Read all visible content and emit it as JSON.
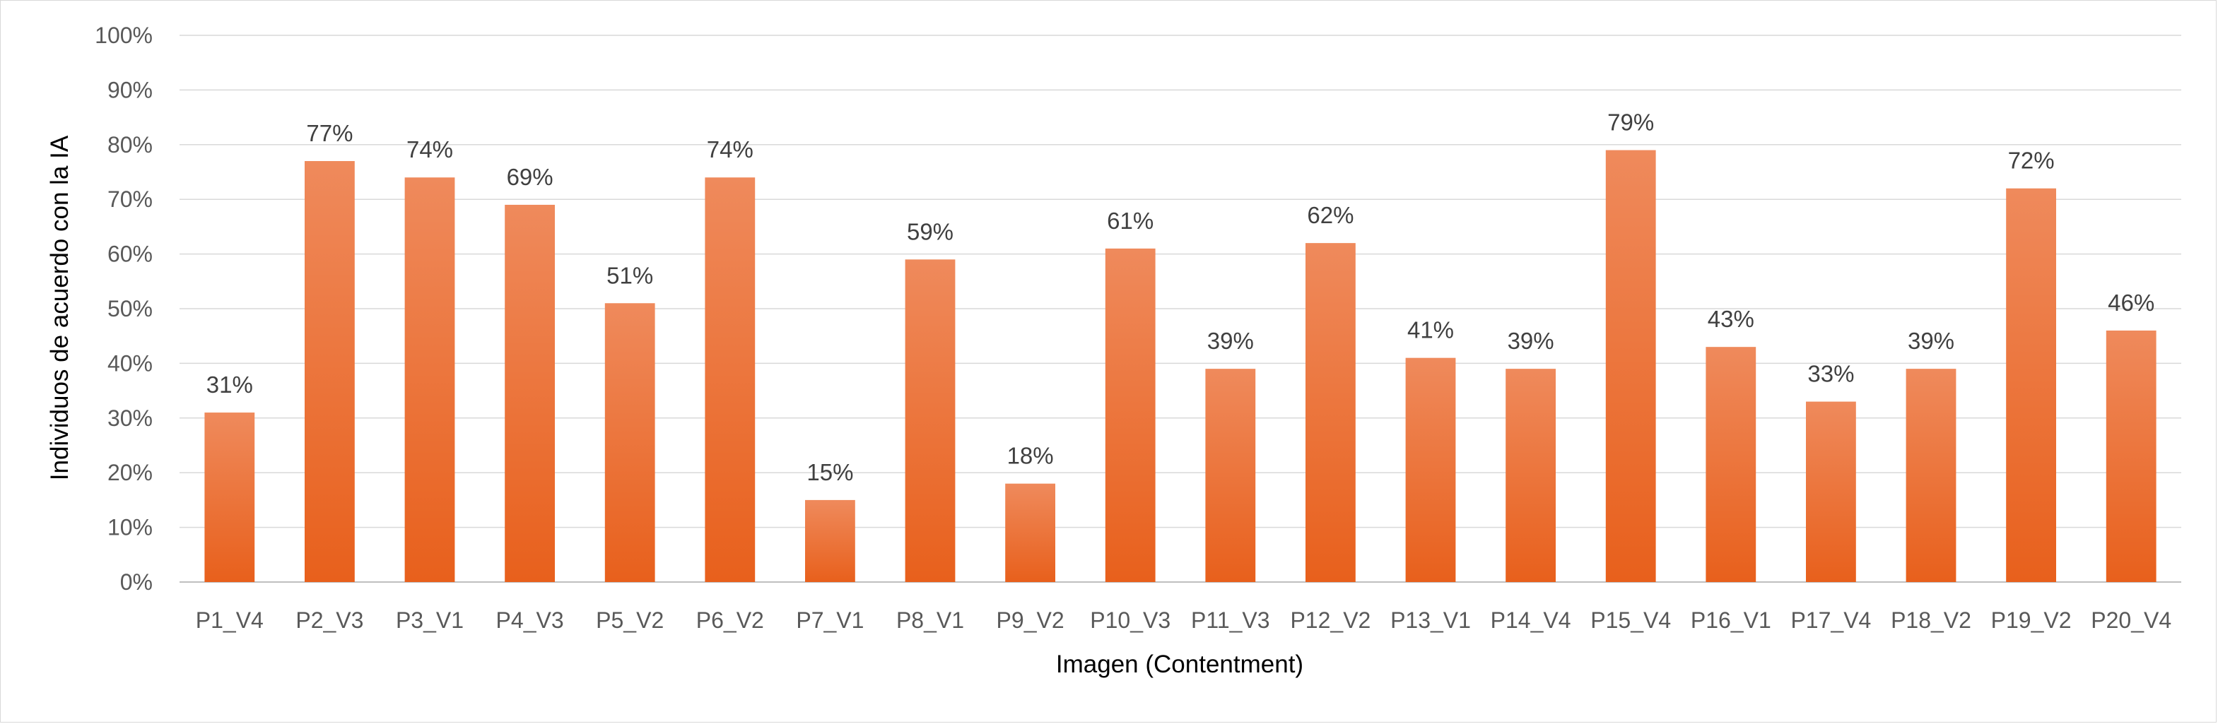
{
  "chart_data": {
    "type": "bar",
    "title": "",
    "xlabel": "Imagen (Contentment)",
    "ylabel": "Individuos de acuerdo con la IA",
    "categories": [
      "P1_V4",
      "P2_V3",
      "P3_V1",
      "P4_V3",
      "P5_V2",
      "P6_V2",
      "P7_V1",
      "P8_V1",
      "P9_V2",
      "P10_V3",
      "P11_V3",
      "P12_V2",
      "P13_V1",
      "P14_V4",
      "P15_V4",
      "P16_V1",
      "P17_V4",
      "P18_V2",
      "P19_V2",
      "P20_V4"
    ],
    "series": [
      {
        "values": [
          31,
          77,
          74,
          69,
          51,
          74,
          15,
          59,
          18,
          61,
          39,
          62,
          41,
          39,
          79,
          43,
          33,
          39,
          72,
          46
        ],
        "color_top": "#ef8a5c",
        "color_bottom": "#e8601c"
      }
    ],
    "ylim": [
      0,
      100
    ],
    "yticks": [
      0,
      10,
      20,
      30,
      40,
      50,
      60,
      70,
      80,
      90,
      100
    ],
    "value_suffix": "%",
    "grid": true,
    "legend": "none"
  }
}
